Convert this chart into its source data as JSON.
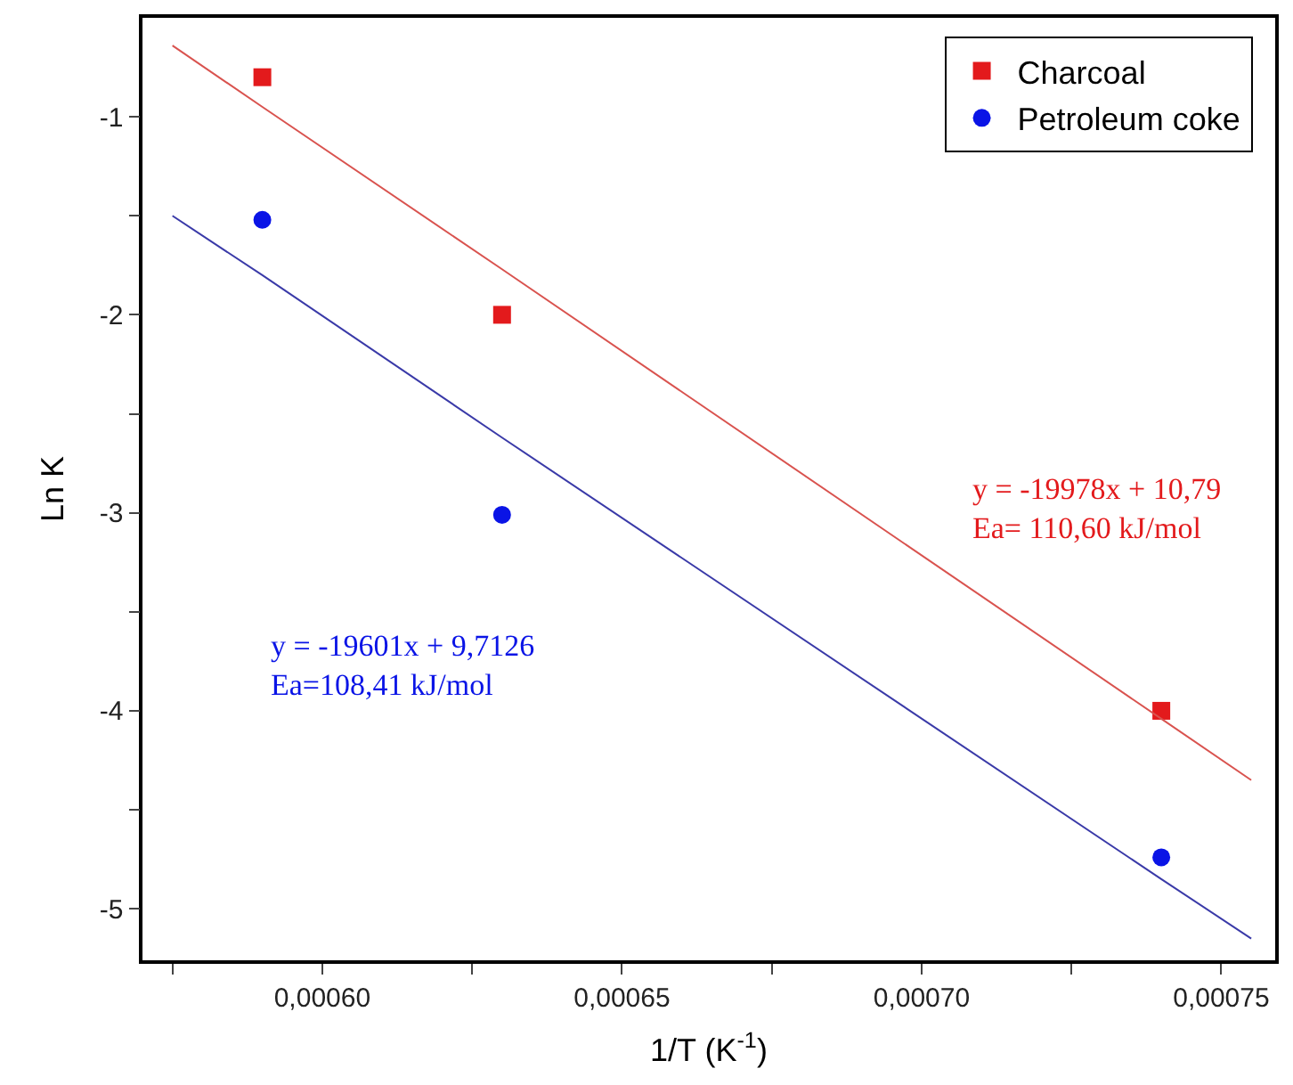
{
  "chart_data": {
    "type": "scatter",
    "xlabel": "1/T (K$^{-1}$)",
    "ylabel": "Ln K",
    "x": [
      0.000575,
      0.00059,
      0.00063,
      0.00074,
      0.000755
    ],
    "series": [
      {
        "name": "Charcoal",
        "color": "#e31a1c",
        "marker": "square",
        "values": [
          null,
          -0.8,
          -2.0,
          -4.0,
          null
        ]
      },
      {
        "name": "Petroleum coke",
        "color": "#0a14e6",
        "marker": "circle",
        "values": [
          null,
          -1.52,
          -3.01,
          -4.74,
          null
        ]
      },
      {
        "type": "line",
        "color": "#d9534f",
        "values": [
          -0.64,
          -0.95,
          -1.77,
          -4.04,
          -4.35
        ]
      },
      {
        "type": "line",
        "color": "#3a3aa8",
        "values": [
          -1.5,
          -1.8,
          -2.62,
          -4.85,
          -5.15
        ]
      }
    ],
    "annotations": [
      "y = -19978x + 10,79\nEa= 110,60 kJ/mol",
      "y = -19601x + 9,7126\nEa=108,41 kJ/mol"
    ],
    "xlim": [
      0.00057,
      0.000759
    ],
    "ylim": [
      -5.26,
      -0.5
    ],
    "xticks": [
      {
        "value": 0.000575,
        "label": null
      },
      {
        "value": 0.0006,
        "label": "0,00060"
      },
      {
        "value": 0.000625,
        "label": null
      },
      {
        "value": 0.00065,
        "label": "0,00065"
      },
      {
        "value": 0.000675,
        "label": null
      },
      {
        "value": 0.0007,
        "label": "0,00070"
      },
      {
        "value": 0.000725,
        "label": null
      },
      {
        "value": 0.00075,
        "label": "0,00075"
      }
    ],
    "yticks": [
      {
        "value": -5,
        "label": "-5"
      },
      {
        "value": -4.5,
        "label": null
      },
      {
        "value": -4,
        "label": "-4"
      },
      {
        "value": -3.5,
        "label": null
      },
      {
        "value": -3,
        "label": "-3"
      },
      {
        "value": -2.5,
        "label": null
      },
      {
        "value": -2,
        "label": "-2"
      },
      {
        "value": -1.5,
        "label": null
      },
      {
        "value": -1,
        "label": "-1"
      }
    ],
    "legend": "top right"
  }
}
